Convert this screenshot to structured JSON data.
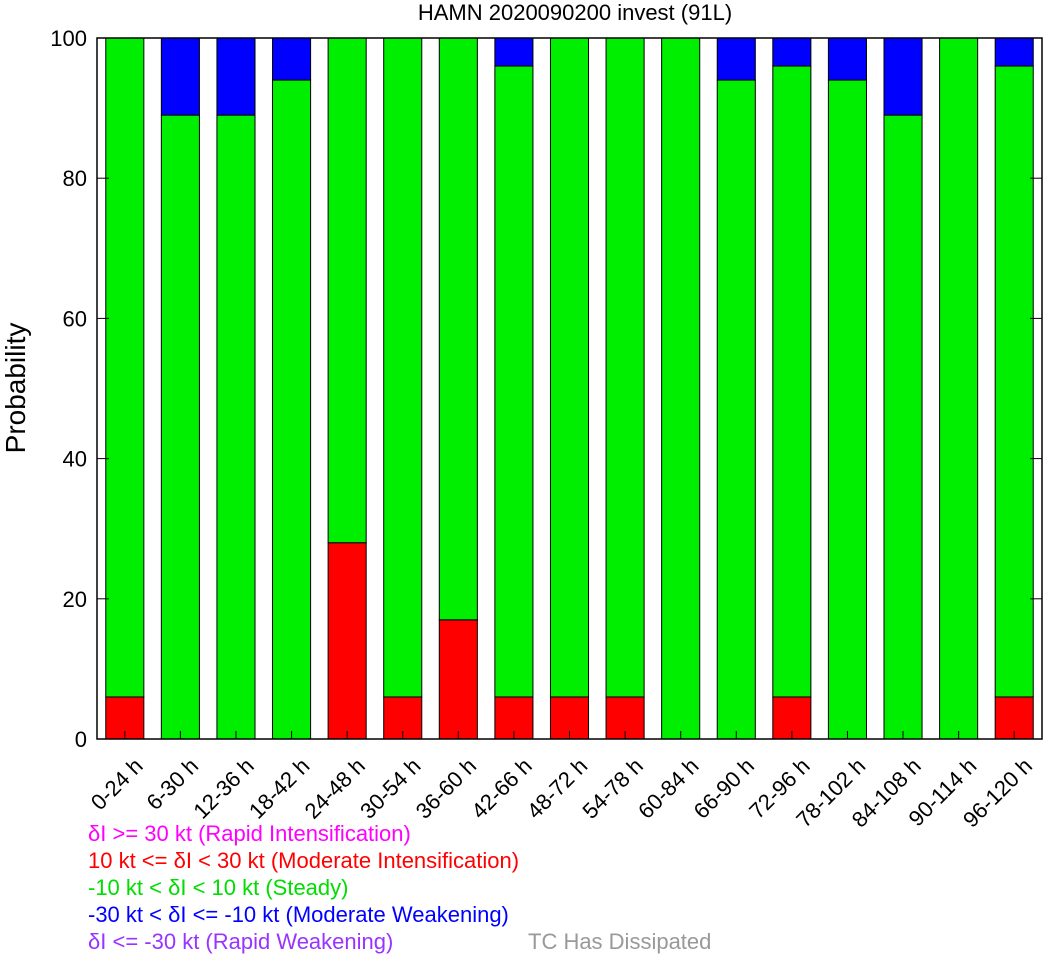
{
  "chart_data": {
    "type": "bar",
    "stacked": true,
    "title": "HAMN 2020090200 invest (91L)",
    "xlabel": "",
    "ylabel": "Probability",
    "ylim": [
      0,
      100
    ],
    "yticks": [
      0,
      20,
      40,
      60,
      80,
      100
    ],
    "grid": false,
    "categories": [
      "0-24 h",
      "6-30 h",
      "12-36 h",
      "18-42 h",
      "24-48 h",
      "30-54 h",
      "36-60 h",
      "42-66 h",
      "48-72 h",
      "54-78 h",
      "60-84 h",
      "66-90 h",
      "72-96 h",
      "78-102 h",
      "84-108 h",
      "90-114 h",
      "96-120 h"
    ],
    "series": [
      {
        "name": "10 kt <= δI < 30 kt (Moderate Intensification)",
        "color": "#ff0000",
        "values": [
          6,
          0,
          0,
          0,
          28,
          6,
          17,
          6,
          6,
          6,
          0,
          0,
          6,
          0,
          0,
          0,
          6
        ]
      },
      {
        "name": "-10 kt < δI < 10 kt (Steady)",
        "color": "#00ee00",
        "values": [
          94,
          89,
          89,
          94,
          72,
          94,
          83,
          90,
          94,
          94,
          100,
          94,
          90,
          94,
          89,
          100,
          90
        ]
      },
      {
        "name": "-30 kt < δI <= -10 kt (Moderate Weakening)",
        "color": "#0000ff",
        "values": [
          0,
          11,
          11,
          6,
          0,
          0,
          0,
          4,
          0,
          0,
          0,
          6,
          4,
          6,
          11,
          0,
          4
        ]
      }
    ],
    "legend": {
      "ri": {
        "text": "δI >= 30 kt (Rapid Intensification)",
        "color": "#ff00ff"
      },
      "mi": {
        "text": "10 kt <= δI < 30 kt (Moderate Intensification)",
        "color": "#ff0000"
      },
      "st": {
        "text": "-10 kt < δI < 10 kt (Steady)",
        "color": "#00dd00"
      },
      "mw": {
        "text": "-30 kt < δI <= -10 kt (Moderate Weakening)",
        "color": "#0000ff"
      },
      "rw": {
        "text": "δI <= -30 kt (Rapid Weakening)",
        "color": "#9933ff"
      },
      "dis": {
        "text": "TC Has Dissipated",
        "color": "#999999"
      }
    }
  }
}
